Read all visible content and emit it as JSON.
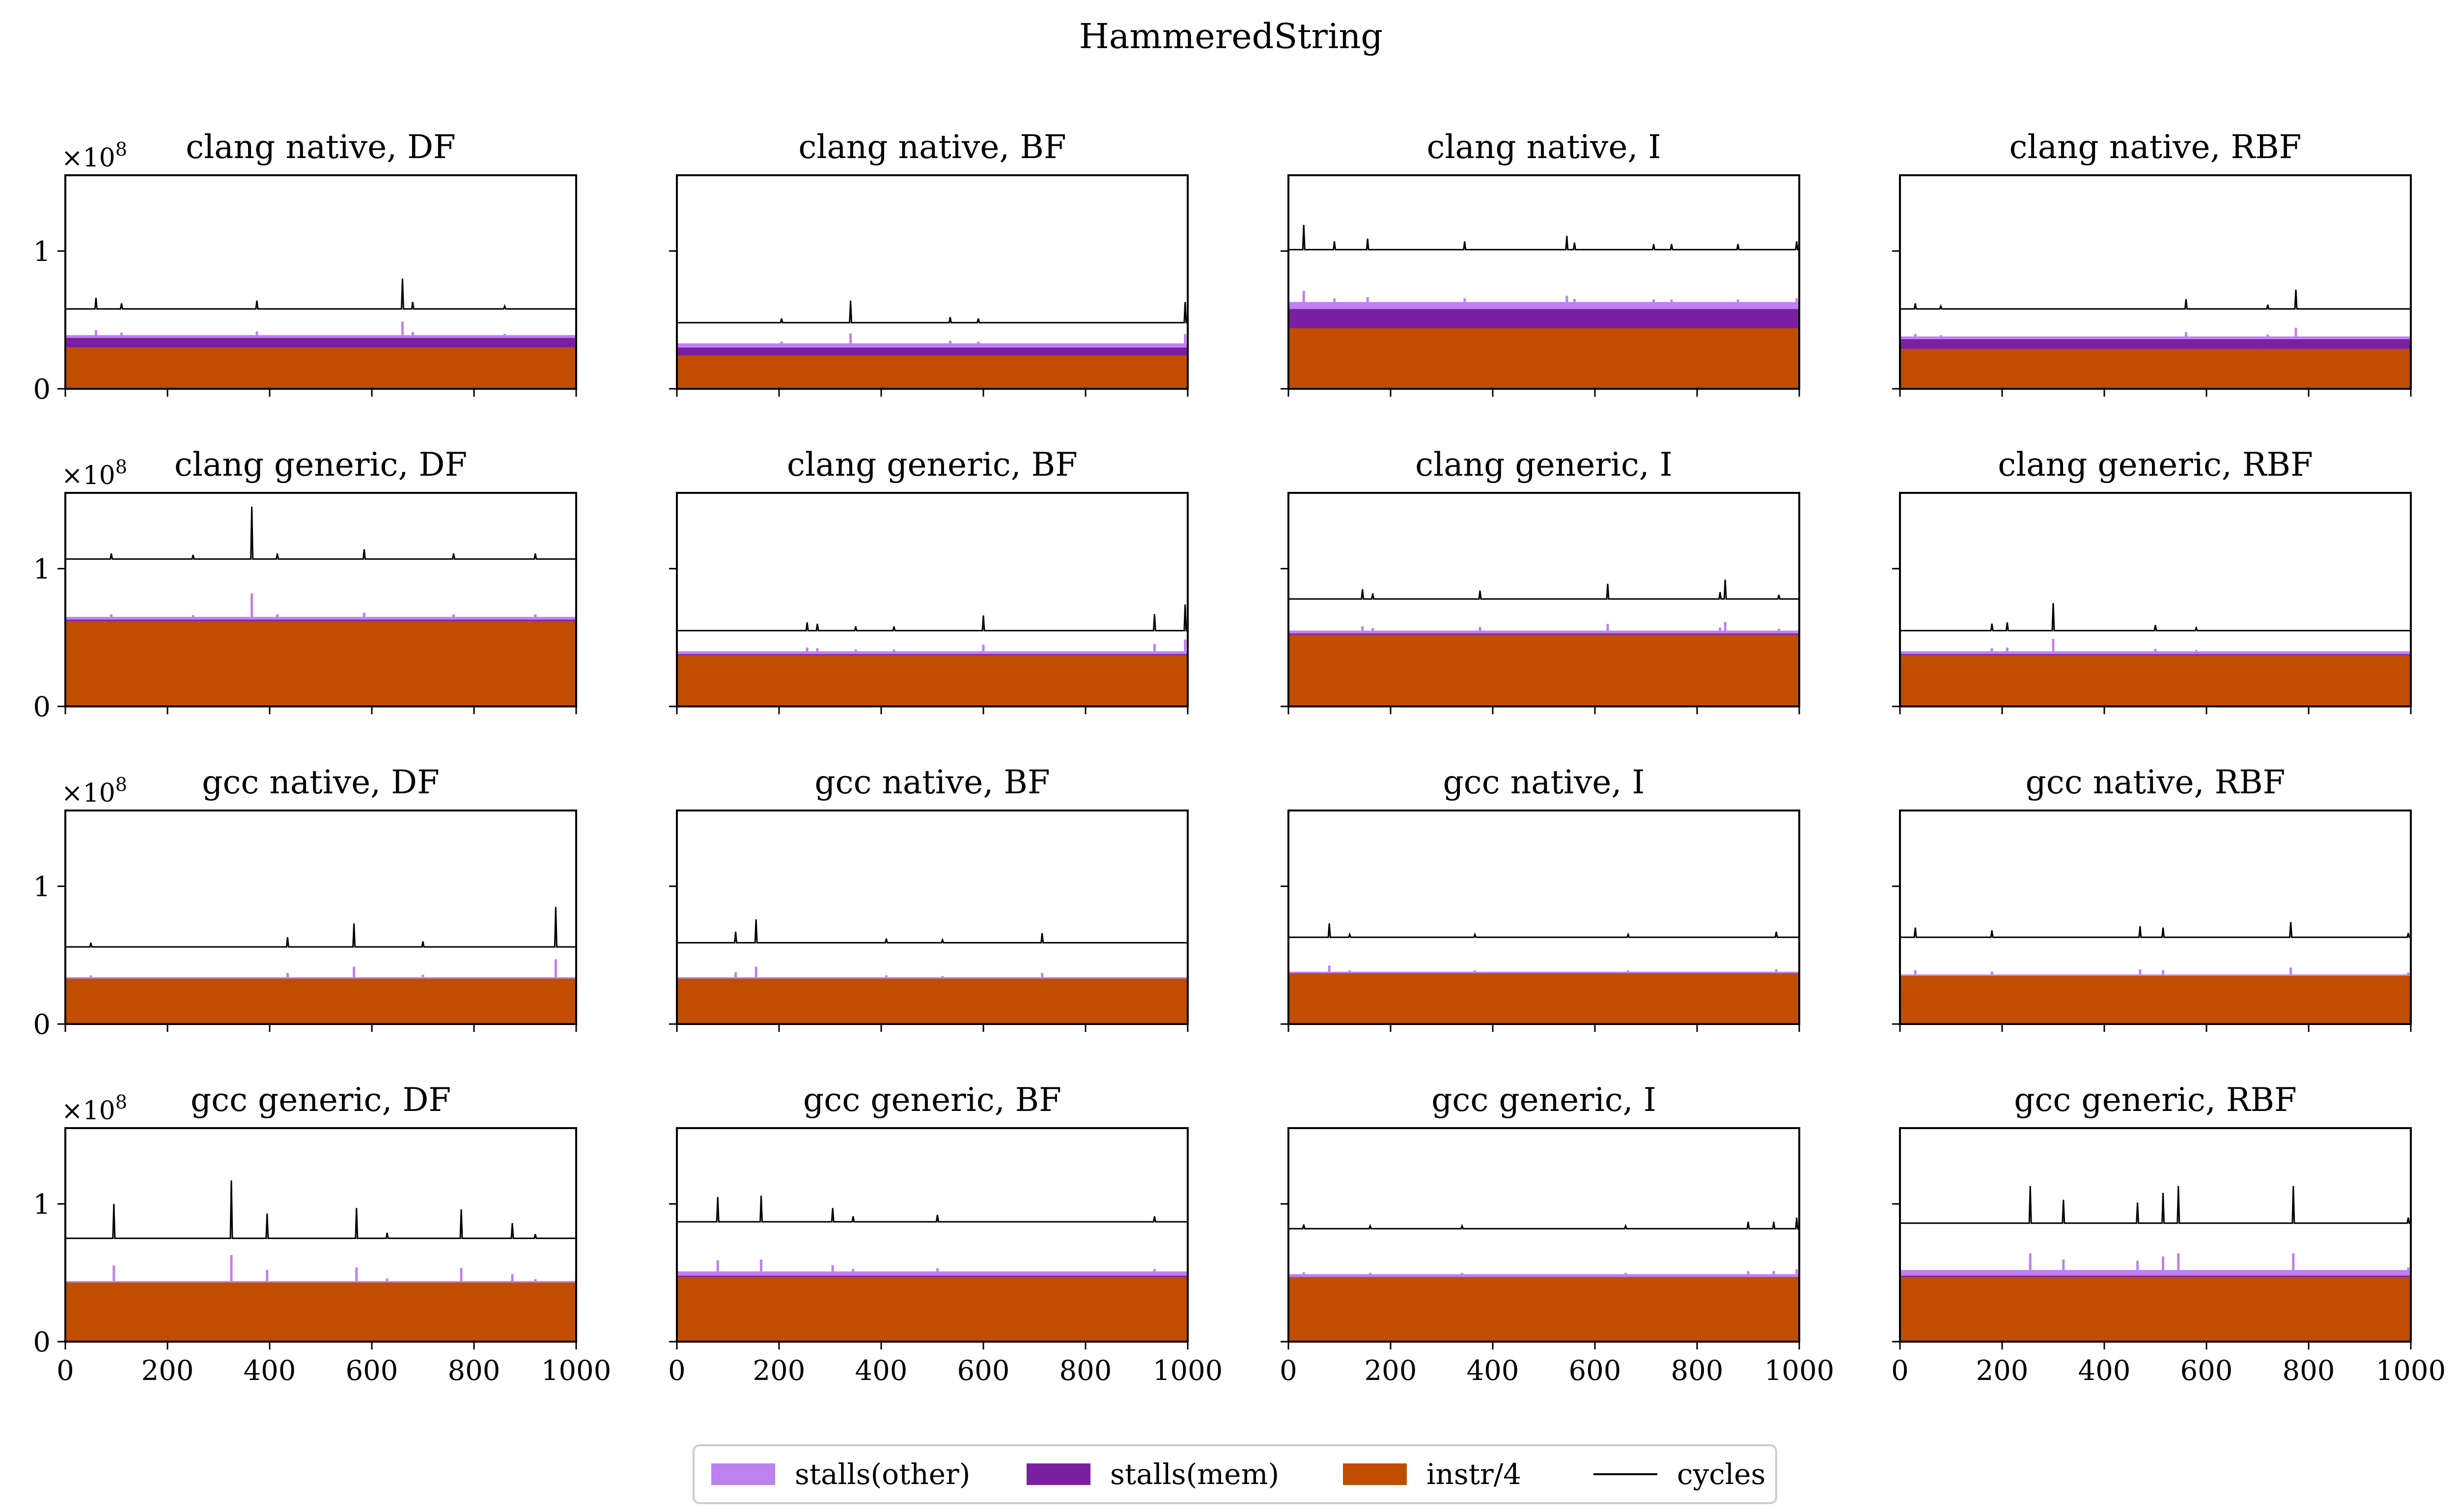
{
  "figure": {
    "title": "HammeredString",
    "multiplier_label": "×10",
    "multiplier_exponent": "8"
  },
  "colors": {
    "stalls_other": "#bf80f0",
    "stalls_mem": "#7a1fa2",
    "instr": "#c04d00",
    "cycles": "#000000"
  },
  "legend": {
    "items": [
      {
        "key": "stalls_other",
        "label": "stalls(other)",
        "kind": "patch"
      },
      {
        "key": "stalls_mem",
        "label": "stalls(mem)",
        "kind": "patch"
      },
      {
        "key": "instr",
        "label": "instr/4",
        "kind": "patch"
      },
      {
        "key": "cycles",
        "label": "cycles",
        "kind": "line"
      }
    ]
  },
  "chart_data": {
    "type": "area",
    "units_multiplier": 100000000,
    "xlim": [
      0,
      1000
    ],
    "ylim": [
      0,
      1.55
    ],
    "xticks": [
      0,
      200,
      400,
      600,
      800,
      1000
    ],
    "xtick_labels": [
      "0",
      "200",
      "400",
      "600",
      "800",
      "1000"
    ],
    "yticks": [
      0,
      1
    ],
    "ytick_labels": [
      "0",
      "1"
    ],
    "series_names": [
      "stalls(other)",
      "stalls(mem)",
      "instr/4",
      "cycles"
    ],
    "panels": [
      {
        "title": "clang native, DF",
        "instr": 0.3,
        "mem": 0.07,
        "other": 0.02,
        "cycles": 0.58,
        "spikes": [
          [
            60,
            0.08
          ],
          [
            110,
            0.04
          ],
          [
            375,
            0.06
          ],
          [
            660,
            0.22
          ],
          [
            680,
            0.05
          ],
          [
            860,
            0.02
          ]
        ]
      },
      {
        "title": "clang native, BF",
        "instr": 0.24,
        "mem": 0.06,
        "other": 0.03,
        "cycles": 0.48,
        "spikes": [
          [
            205,
            0.03
          ],
          [
            340,
            0.16
          ],
          [
            535,
            0.04
          ],
          [
            590,
            0.03
          ],
          [
            995,
            0.15
          ]
        ]
      },
      {
        "title": "clang native, I",
        "instr": 0.44,
        "mem": 0.14,
        "other": 0.05,
        "cycles": 1.01,
        "spikes": [
          [
            30,
            0.18
          ],
          [
            90,
            0.06
          ],
          [
            155,
            0.08
          ],
          [
            345,
            0.06
          ],
          [
            545,
            0.1
          ],
          [
            560,
            0.05
          ],
          [
            715,
            0.04
          ],
          [
            750,
            0.04
          ],
          [
            880,
            0.04
          ],
          [
            995,
            0.06
          ]
        ]
      },
      {
        "title": "clang native, RBF",
        "instr": 0.29,
        "mem": 0.07,
        "other": 0.02,
        "cycles": 0.58,
        "spikes": [
          [
            30,
            0.04
          ],
          [
            80,
            0.02
          ],
          [
            560,
            0.07
          ],
          [
            720,
            0.03
          ],
          [
            775,
            0.14
          ]
        ]
      },
      {
        "title": "clang generic, DF",
        "instr": 0.62,
        "mem": 0.01,
        "other": 0.02,
        "cycles": 1.07,
        "spikes": [
          [
            90,
            0.04
          ],
          [
            250,
            0.03
          ],
          [
            365,
            0.38
          ],
          [
            415,
            0.04
          ],
          [
            585,
            0.07
          ],
          [
            760,
            0.04
          ],
          [
            920,
            0.04
          ]
        ]
      },
      {
        "title": "clang generic, BF",
        "instr": 0.37,
        "mem": 0.01,
        "other": 0.02,
        "cycles": 0.55,
        "spikes": [
          [
            255,
            0.06
          ],
          [
            275,
            0.05
          ],
          [
            350,
            0.03
          ],
          [
            425,
            0.03
          ],
          [
            600,
            0.11
          ],
          [
            935,
            0.12
          ],
          [
            995,
            0.19
          ]
        ]
      },
      {
        "title": "clang generic, I",
        "instr": 0.52,
        "mem": 0.01,
        "other": 0.02,
        "cycles": 0.78,
        "spikes": [
          [
            145,
            0.07
          ],
          [
            165,
            0.04
          ],
          [
            375,
            0.06
          ],
          [
            625,
            0.11
          ],
          [
            845,
            0.05
          ],
          [
            855,
            0.14
          ],
          [
            960,
            0.03
          ]
        ]
      },
      {
        "title": "clang generic, RBF",
        "instr": 0.37,
        "mem": 0.01,
        "other": 0.02,
        "cycles": 0.55,
        "spikes": [
          [
            180,
            0.05
          ],
          [
            210,
            0.06
          ],
          [
            300,
            0.2
          ],
          [
            500,
            0.04
          ],
          [
            580,
            0.02
          ]
        ]
      },
      {
        "title": "gcc native, DF",
        "instr": 0.33,
        "mem": 0.0,
        "other": 0.01,
        "cycles": 0.56,
        "spikes": [
          [
            50,
            0.03
          ],
          [
            435,
            0.07
          ],
          [
            565,
            0.17
          ],
          [
            700,
            0.04
          ],
          [
            960,
            0.29
          ]
        ]
      },
      {
        "title": "gcc native, BF",
        "instr": 0.33,
        "mem": 0.0,
        "other": 0.01,
        "cycles": 0.59,
        "spikes": [
          [
            115,
            0.08
          ],
          [
            155,
            0.17
          ],
          [
            410,
            0.03
          ],
          [
            520,
            0.02
          ],
          [
            715,
            0.07
          ]
        ]
      },
      {
        "title": "gcc native, I",
        "instr": 0.37,
        "mem": 0.0,
        "other": 0.01,
        "cycles": 0.63,
        "spikes": [
          [
            80,
            0.1
          ],
          [
            120,
            0.02
          ],
          [
            365,
            0.02
          ],
          [
            665,
            0.02
          ],
          [
            955,
            0.04
          ]
        ]
      },
      {
        "title": "gcc native, RBF",
        "instr": 0.35,
        "mem": 0.0,
        "other": 0.01,
        "cycles": 0.63,
        "spikes": [
          [
            30,
            0.07
          ],
          [
            180,
            0.05
          ],
          [
            470,
            0.08
          ],
          [
            515,
            0.07
          ],
          [
            765,
            0.11
          ],
          [
            995,
            0.03
          ]
        ]
      },
      {
        "title": "gcc generic, DF",
        "instr": 0.43,
        "mem": 0.0,
        "other": 0.01,
        "cycles": 0.75,
        "spikes": [
          [
            95,
            0.25
          ],
          [
            325,
            0.42
          ],
          [
            395,
            0.18
          ],
          [
            570,
            0.22
          ],
          [
            630,
            0.04
          ],
          [
            775,
            0.21
          ],
          [
            875,
            0.11
          ],
          [
            920,
            0.03
          ]
        ]
      },
      {
        "title": "gcc generic, BF",
        "instr": 0.47,
        "mem": 0.01,
        "other": 0.03,
        "cycles": 0.87,
        "spikes": [
          [
            80,
            0.18
          ],
          [
            165,
            0.19
          ],
          [
            305,
            0.1
          ],
          [
            345,
            0.04
          ],
          [
            510,
            0.05
          ],
          [
            935,
            0.04
          ]
        ]
      },
      {
        "title": "gcc generic, I",
        "instr": 0.47,
        "mem": 0.0,
        "other": 0.02,
        "cycles": 0.82,
        "spikes": [
          [
            30,
            0.03
          ],
          [
            160,
            0.02
          ],
          [
            340,
            0.02
          ],
          [
            660,
            0.02
          ],
          [
            900,
            0.05
          ],
          [
            950,
            0.05
          ],
          [
            995,
            0.08
          ]
        ]
      },
      {
        "title": "gcc generic, RBF",
        "instr": 0.47,
        "mem": 0.01,
        "other": 0.04,
        "cycles": 0.86,
        "spikes": [
          [
            255,
            0.27
          ],
          [
            320,
            0.17
          ],
          [
            465,
            0.15
          ],
          [
            515,
            0.22
          ],
          [
            545,
            0.27
          ],
          [
            770,
            0.27
          ],
          [
            995,
            0.04
          ]
        ]
      }
    ]
  }
}
